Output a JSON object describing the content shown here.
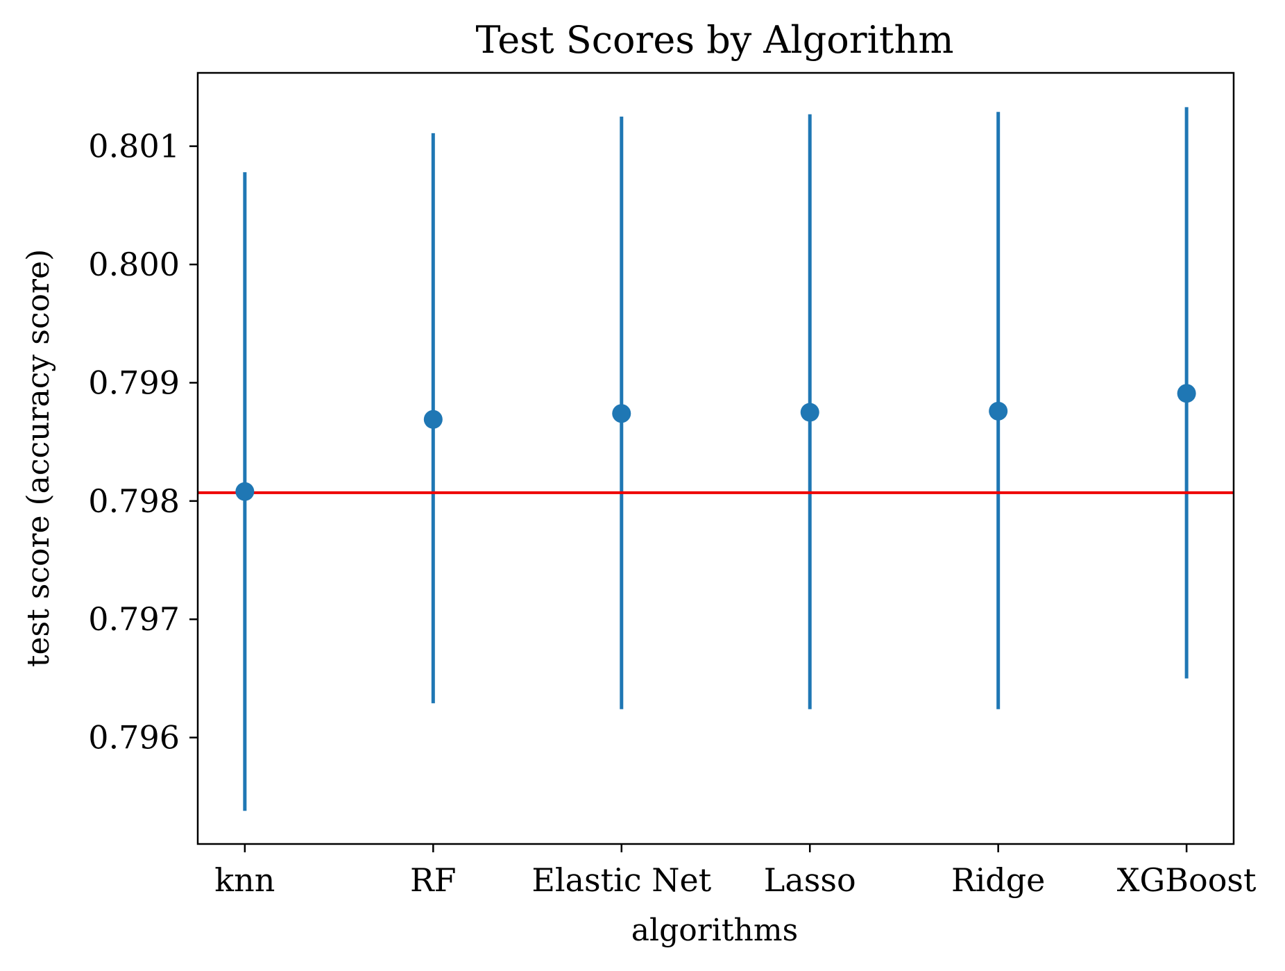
{
  "chart_data": {
    "type": "scatter",
    "title": "Test Scores by Algorithm",
    "xlabel": "algorithms",
    "ylabel": "test score (accuracy score)",
    "categories": [
      "knn",
      "RF",
      "Elastic Net",
      "Lasso",
      "Ridge",
      "XGBoost"
    ],
    "series": [
      {
        "values": [
          0.79808,
          0.79869,
          0.79874,
          0.79875,
          0.79876,
          0.79891
        ],
        "error_low": [
          0.79538,
          0.79629,
          0.79624,
          0.79624,
          0.79624,
          0.7965
        ],
        "error_high": [
          0.80078,
          0.80111,
          0.80125,
          0.80127,
          0.80129,
          0.80133
        ],
        "color": "#1f77b4"
      }
    ],
    "reference_line": {
      "value": 0.79807,
      "color": "#ee0000"
    },
    "ylim": [
      0.7951,
      0.80162
    ],
    "yticks": [
      "0.796",
      "0.797",
      "0.798",
      "0.799",
      "0.800",
      "0.801"
    ],
    "grid": false
  }
}
